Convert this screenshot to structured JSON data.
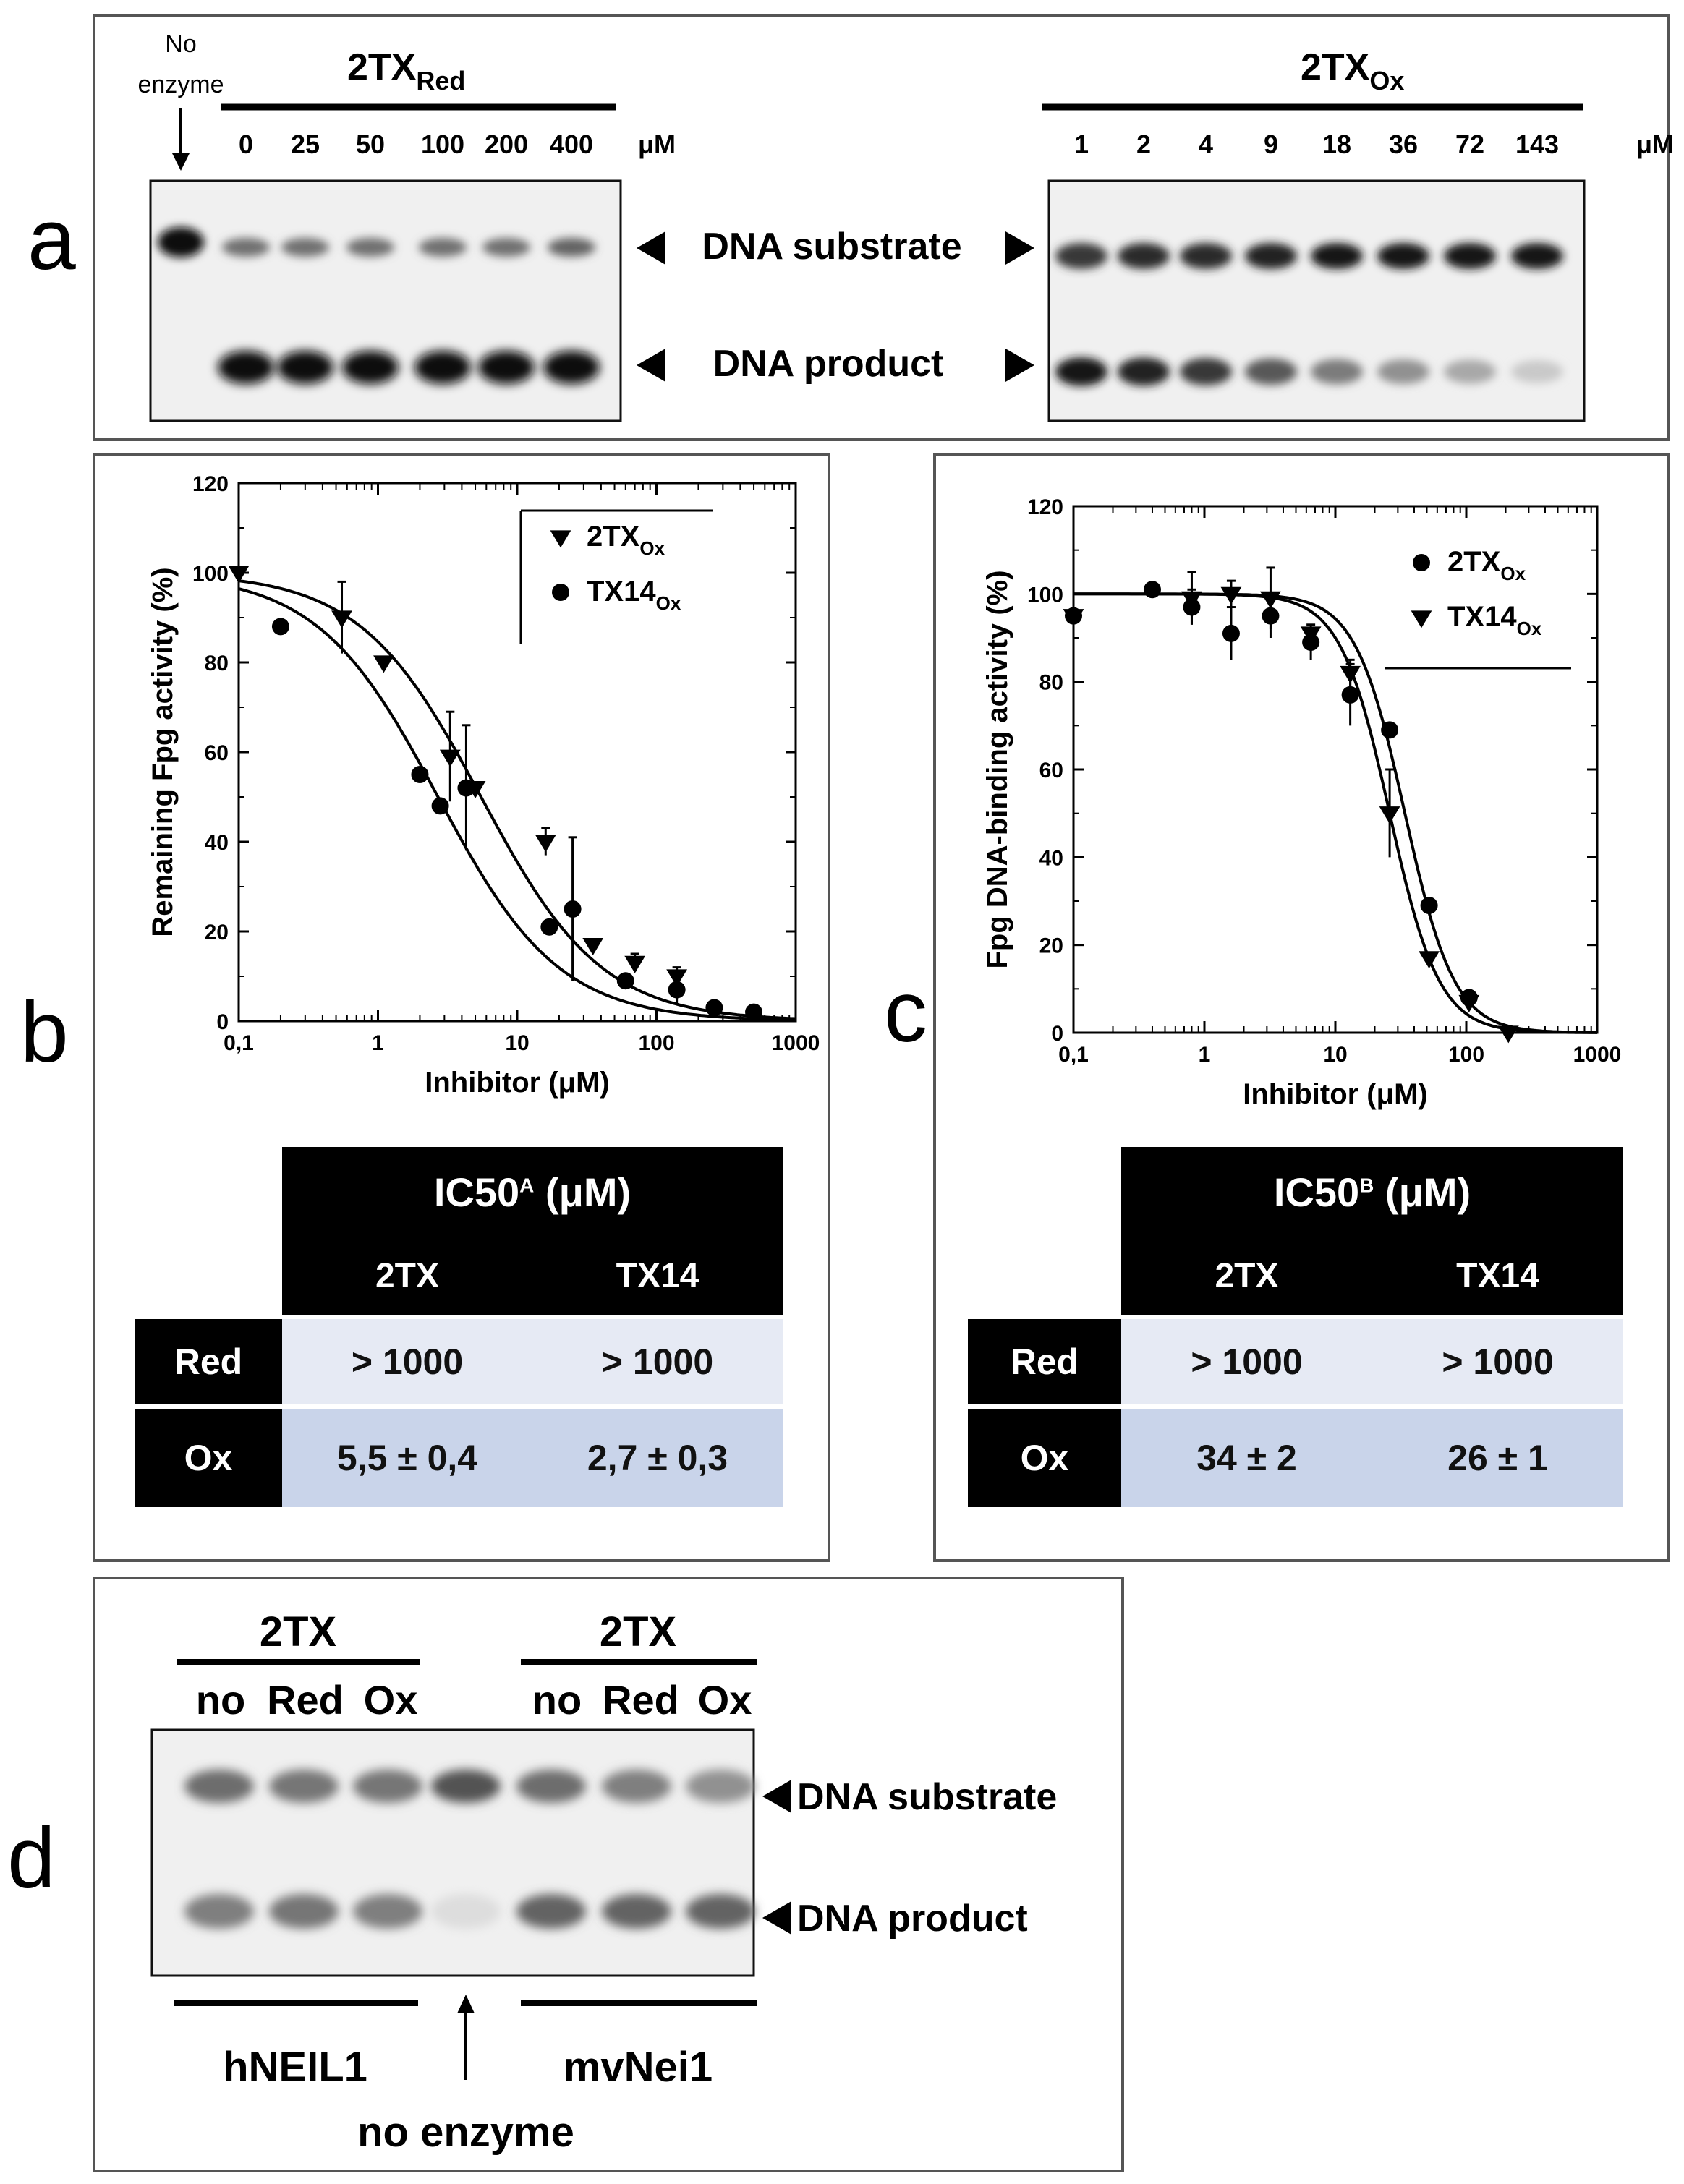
{
  "panel_labels": {
    "a": "a",
    "b": "b",
    "c": "c",
    "d": "d"
  },
  "panel_a": {
    "no_enzyme_line1": "No",
    "no_enzyme_line2": "enzyme",
    "red_title": "2TX",
    "red_subscript": "Red",
    "ox_title": "2TX",
    "ox_subscript": "Ox",
    "red_concentrations": [
      "0",
      "25",
      "50",
      "100",
      "200",
      "400"
    ],
    "ox_concentrations": [
      "1",
      "2",
      "4",
      "9",
      "18",
      "36",
      "72",
      "143"
    ],
    "unit": "μM",
    "substrate_label": "DNA substrate",
    "product_label": "DNA product",
    "red_gel": {
      "substrate_intensity": [
        1.0,
        0.55,
        0.55,
        0.55,
        0.55,
        0.55,
        0.6
      ],
      "product_intensity": [
        0,
        1,
        1,
        1,
        1,
        1,
        1
      ]
    },
    "ox_gel": {
      "substrate_intensity": [
        0.8,
        0.85,
        0.85,
        0.9,
        0.95,
        0.95,
        0.95,
        0.95
      ],
      "product_intensity": [
        0.95,
        0.9,
        0.8,
        0.65,
        0.5,
        0.4,
        0.3,
        0.15
      ]
    }
  },
  "chart_data": [
    {
      "type": "scatter",
      "panel": "b",
      "xlabel": "Inhibitor (μM)",
      "ylabel": "Remaining Fpg activity (%)",
      "xscale": "log",
      "xlim": [
        0.1,
        1000
      ],
      "ylim": [
        0,
        120
      ],
      "xticks": [
        "0,1",
        "1",
        "10",
        "100",
        "1000"
      ],
      "yticks": [
        "0",
        "20",
        "40",
        "60",
        "80",
        "100",
        "120"
      ],
      "series": [
        {
          "name": "2TX",
          "subscript": "Ox",
          "marker": "triangle-down",
          "ic50": 5.5,
          "hill": 1,
          "x": [
            0.1,
            0.55,
            1.1,
            3.3,
            5,
            16,
            35,
            70,
            140
          ],
          "y": [
            100,
            90,
            80,
            59,
            52,
            40,
            17,
            13,
            10
          ],
          "err": [
            0,
            8,
            0,
            10,
            0,
            3,
            0,
            2,
            2
          ]
        },
        {
          "name": "TX14",
          "subscript": "Ox",
          "marker": "circle",
          "ic50": 2.7,
          "hill": 1,
          "x": [
            0.2,
            2,
            2.8,
            4.3,
            17,
            25,
            60,
            140,
            260,
            500
          ],
          "y": [
            88,
            55,
            48,
            52,
            21,
            25,
            9,
            7,
            3,
            2
          ],
          "err": [
            0,
            0,
            0,
            14,
            0,
            16,
            0,
            3,
            0,
            0
          ]
        }
      ]
    },
    {
      "type": "scatter",
      "panel": "c",
      "xlabel": "Inhibitor (μM)",
      "ylabel": "Fpg DNA-binding activity (%)",
      "xscale": "log",
      "xlim": [
        0.1,
        1000
      ],
      "ylim": [
        0,
        120
      ],
      "xticks": [
        "0,1",
        "1",
        "10",
        "100",
        "1000"
      ],
      "yticks": [
        "0",
        "20",
        "40",
        "60",
        "80",
        "100",
        "120"
      ],
      "series": [
        {
          "name": "2TX",
          "subscript": "Ox",
          "marker": "circle",
          "ic50": 34,
          "hill": 2.3,
          "x": [
            0.1,
            0.4,
            0.8,
            1.6,
            3.2,
            6.5,
            13,
            26,
            52,
            105
          ],
          "y": [
            95,
            101,
            97,
            91,
            95,
            89,
            77,
            69,
            29,
            8
          ],
          "err": [
            0,
            0,
            4,
            6,
            5,
            4,
            7,
            0,
            0,
            0
          ]
        },
        {
          "name": "TX14",
          "subscript": "Ox",
          "marker": "triangle-down",
          "ic50": 26,
          "hill": 2.3,
          "x": [
            0.1,
            0.8,
            1.6,
            3.2,
            6.5,
            13,
            26,
            52,
            105,
            210
          ],
          "y": [
            95,
            99,
            100,
            99,
            91,
            82,
            50,
            17,
            7,
            0
          ],
          "err": [
            0,
            6,
            3,
            7,
            0,
            3,
            10,
            0,
            0,
            0
          ]
        }
      ]
    }
  ],
  "table_b": {
    "header": "IC50",
    "header_sup": "A",
    "header_unit": " (μM)",
    "cols": [
      "2TX",
      "TX14"
    ],
    "rows": [
      {
        "label": "Red",
        "values": [
          "> 1000",
          "> 1000"
        ]
      },
      {
        "label": "Ox",
        "values": [
          "5,5  ± 0,4",
          "2,7  ± 0,3"
        ]
      }
    ]
  },
  "table_c": {
    "header": "IC50",
    "header_sup": "B",
    "header_unit": " (μM)",
    "cols": [
      "2TX",
      "TX14"
    ],
    "rows": [
      {
        "label": "Red",
        "values": [
          "> 1000",
          "> 1000"
        ]
      },
      {
        "label": "Ox",
        "values": [
          "34  ± 2",
          "26  ± 1"
        ]
      }
    ]
  },
  "panel_d": {
    "group1_title": "2TX",
    "group2_title": "2TX",
    "lane_labels": [
      "no",
      "Red",
      "Ox"
    ],
    "substrate_label": "DNA substrate",
    "product_label": "DNA product",
    "enzyme1": "hNEIL1",
    "enzyme2": "mvNei1",
    "no_enzyme": "no enzyme",
    "gel": {
      "substrate_intensity": [
        0.7,
        0.65,
        0.65,
        0.85,
        0.7,
        0.6,
        0.5
      ],
      "product_intensity": [
        0.6,
        0.65,
        0.6,
        0.08,
        0.75,
        0.75,
        0.75
      ]
    }
  }
}
